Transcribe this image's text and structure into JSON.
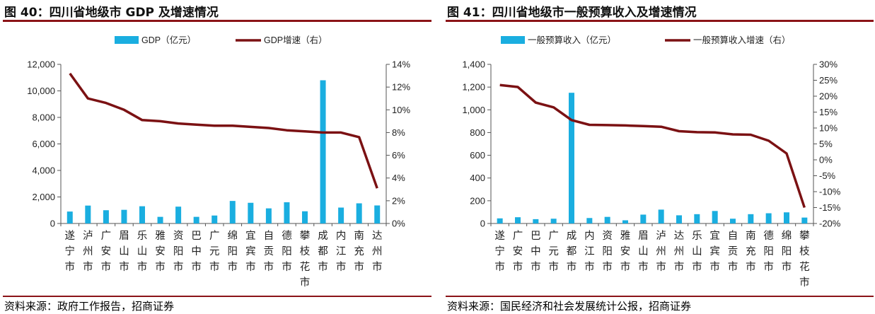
{
  "figure_40": {
    "title": "图 40：四川省地级市 GDP 及增速情况",
    "source": "资料来源：政府工作报告，招商证券"
  },
  "figure_41": {
    "title": "图 41：四川省地级市一般预算收入及增速情况",
    "source": "资料来源：国民经济和社会发展统计公报，招商证券"
  },
  "chart_data": [
    {
      "type": "bar",
      "categories": [
        "遂宁市",
        "泸州市",
        "广安市",
        "眉山市",
        "乐山市",
        "雅安市",
        "资阳市",
        "巴中市",
        "广元市",
        "绵阳市",
        "宜宾市",
        "自贡市",
        "德阳市",
        "攀枝花市",
        "成都市",
        "内江市",
        "南充市",
        "达州市"
      ],
      "series": [
        {
          "name": "GDP（亿元）",
          "type": "bar",
          "axis": "left",
          "color": "#1aaee0",
          "values": [
            900,
            1350,
            1000,
            1030,
            1300,
            500,
            1270,
            500,
            600,
            1700,
            1560,
            1140,
            1600,
            920,
            10800,
            1200,
            1520,
            1360
          ]
        },
        {
          "name": "GDP增速（右）",
          "type": "line",
          "axis": "right",
          "color": "#7b1113",
          "values": [
            13.2,
            11.0,
            10.6,
            10.0,
            9.1,
            9.0,
            8.8,
            8.7,
            8.6,
            8.6,
            8.5,
            8.4,
            8.2,
            8.1,
            8.0,
            8.0,
            7.6,
            3.1
          ]
        }
      ],
      "y_left": {
        "min": 0,
        "max": 12000,
        "ticks": [
          0,
          2000,
          4000,
          6000,
          8000,
          10000,
          12000
        ],
        "tick_labels": [
          "0",
          "2,000",
          "4,000",
          "6,000",
          "8,000",
          "10,000",
          "12,000"
        ]
      },
      "y_right": {
        "min": 0,
        "max": 14,
        "ticks": [
          0,
          2,
          4,
          6,
          8,
          10,
          12,
          14
        ],
        "tick_labels": [
          "0%",
          "2%",
          "4%",
          "6%",
          "8%",
          "10%",
          "12%",
          "14%"
        ]
      },
      "legend_position": "top",
      "grid": false
    },
    {
      "type": "bar",
      "categories": [
        "遂宁市",
        "广安市",
        "巴中市",
        "广元市",
        "成都市",
        "内江市",
        "资阳市",
        "雅安市",
        "眉山市",
        "泸州市",
        "达州市",
        "乐山市",
        "宜宾市",
        "自贡市",
        "南充市",
        "德阳市",
        "绵阳市",
        "攀枝花市"
      ],
      "series": [
        {
          "name": "一般预算收入（亿元）",
          "type": "bar",
          "axis": "left",
          "color": "#1aaee0",
          "values": [
            45,
            55,
            38,
            42,
            1150,
            48,
            58,
            28,
            78,
            122,
            72,
            82,
            110,
            42,
            82,
            90,
            98,
            52
          ]
        },
        {
          "name": "一般预算收入增速（右）",
          "type": "line",
          "axis": "right",
          "color": "#7b1113",
          "values": [
            23.5,
            22.9,
            18.0,
            16.5,
            12.5,
            11.0,
            10.9,
            10.8,
            10.6,
            10.4,
            9.0,
            8.7,
            8.6,
            8.0,
            7.9,
            6.0,
            2.0,
            -15.0
          ]
        }
      ],
      "y_left": {
        "min": 0,
        "max": 1400,
        "ticks": [
          0,
          200,
          400,
          600,
          800,
          1000,
          1200,
          1400
        ],
        "tick_labels": [
          "0",
          "200",
          "400",
          "600",
          "800",
          "1,000",
          "1,200",
          "1,400"
        ]
      },
      "y_right": {
        "min": -20,
        "max": 30,
        "ticks": [
          -20,
          -15,
          -10,
          -5,
          0,
          5,
          10,
          15,
          20,
          25,
          30
        ],
        "tick_labels": [
          "-20%",
          "-15%",
          "-10%",
          "-5%",
          "0%",
          "5%",
          "10%",
          "15%",
          "20%",
          "25%",
          "30%"
        ]
      },
      "legend_position": "top",
      "grid": false
    }
  ]
}
